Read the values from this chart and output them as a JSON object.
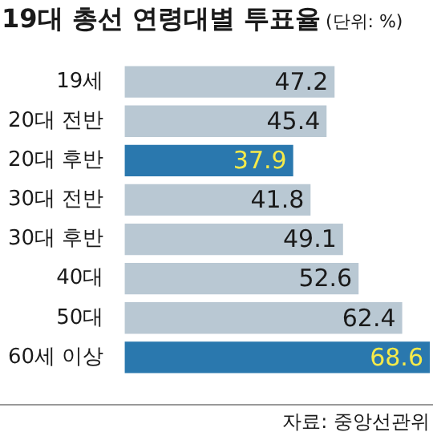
{
  "chart_data": {
    "type": "bar",
    "orientation": "horizontal",
    "title": "19대 총선 연령대별 투표율",
    "subtitle": "(단위: %)",
    "categories": [
      "19세",
      "20대 전반",
      "20대 후반",
      "30대 전반",
      "30대 후반",
      "40대",
      "50대",
      "60세 이상"
    ],
    "values": [
      47.2,
      45.4,
      37.9,
      41.8,
      49.1,
      52.6,
      62.4,
      68.6
    ],
    "colors": [
      "#b9c8d3",
      "#b9c8d3",
      "#2a78ae",
      "#b9c8d3",
      "#b9c8d3",
      "#b9c8d3",
      "#b9c8d3",
      "#2a78ae"
    ],
    "data_labels": true,
    "tick_labels": "y",
    "legend": false,
    "annotations": [
      "자료: 중앙선관위"
    ]
  }
}
